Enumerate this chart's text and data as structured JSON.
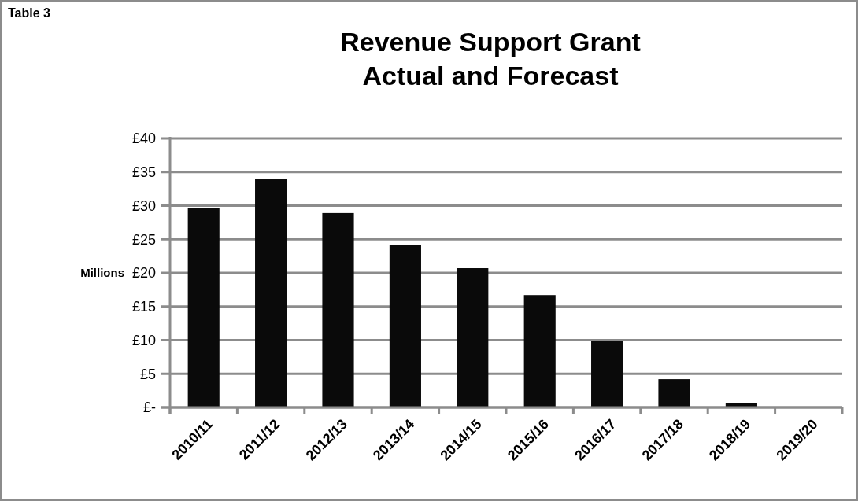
{
  "chart_data": {
    "type": "bar",
    "title": "Revenue Support Grant\nActual and Forecast",
    "ylabel": "Millions",
    "annotations": [
      "Table 3"
    ],
    "categories": [
      "2010/11",
      "2011/12",
      "2012/13",
      "2013/14",
      "2014/15",
      "2015/16",
      "2016/17",
      "2017/18",
      "2018/19",
      "2019/20"
    ],
    "values": [
      29.6,
      34.0,
      28.9,
      24.2,
      20.7,
      16.7,
      9.9,
      4.2,
      0.7,
      0
    ],
    "color": "#0a0a0a",
    "ylim": [
      0,
      40
    ],
    "yticks": [
      {
        "value": 0,
        "label": "£-"
      },
      {
        "value": 5,
        "label": "£5"
      },
      {
        "value": 10,
        "label": "£10"
      },
      {
        "value": 15,
        "label": "£15"
      },
      {
        "value": 20,
        "label": "£20"
      },
      {
        "value": 25,
        "label": "£25"
      },
      {
        "value": 30,
        "label": "£30"
      },
      {
        "value": 35,
        "label": "£35"
      },
      {
        "value": 40,
        "label": "£40"
      }
    ],
    "grid": "y"
  }
}
